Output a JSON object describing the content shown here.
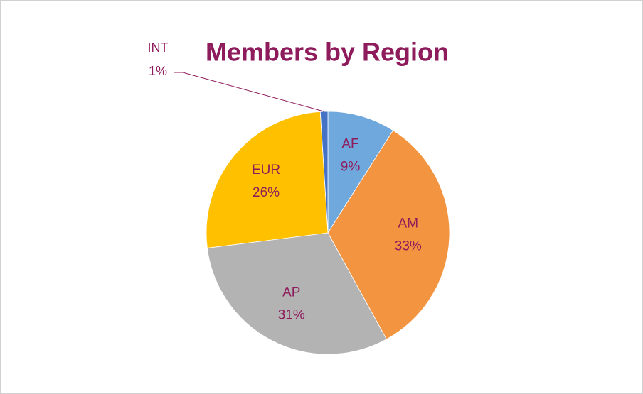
{
  "chart_data": {
    "type": "pie",
    "title": "Members by Region",
    "categories": [
      "AF",
      "AM",
      "AP",
      "EUR",
      "INT"
    ],
    "values": [
      9,
      33,
      31,
      26,
      1
    ],
    "value_labels": [
      "9%",
      "33%",
      "31%",
      "26%",
      "1%"
    ],
    "colors": [
      "#6fa8dc",
      "#f39441",
      "#b3b3b3",
      "#ffc000",
      "#4472c4"
    ]
  }
}
